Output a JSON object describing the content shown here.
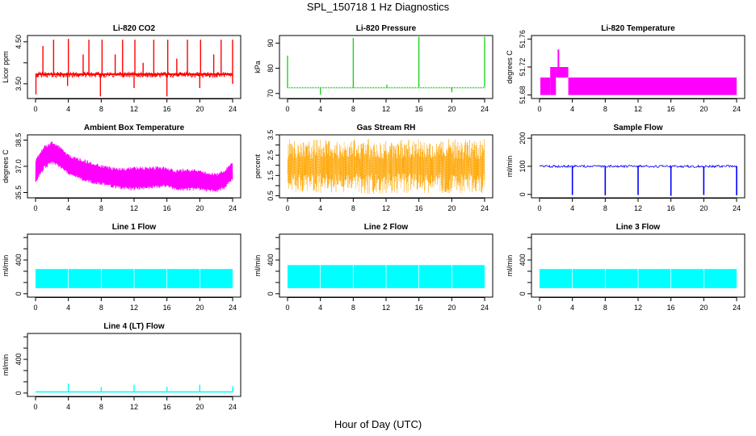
{
  "page": {
    "title": "SPL_150718  1 Hz Diagnostics",
    "xlabel": "Hour of Day (UTC)"
  },
  "chart_data": [
    {
      "id": "co2",
      "type": "line",
      "title": "Li-820 CO2",
      "ylabel": "Licor ppm",
      "color": "#ff0000",
      "x_ticks": [
        0,
        4,
        8,
        12,
        16,
        20,
        24
      ],
      "xlim": [
        0,
        24
      ],
      "y_ticks": [
        3.5,
        4,
        4.5
      ],
      "y_tick_labels": [
        "3.50",
        "",
        "4.50"
      ],
      "ylim": [
        3.15,
        4.65
      ],
      "baseline": 3.73,
      "band": [
        3.65,
        3.78
      ],
      "spikes_up": [
        [
          0.9,
          4.4
        ],
        [
          2.2,
          4.55
        ],
        [
          4.0,
          4.57
        ],
        [
          5.8,
          4.2
        ],
        [
          6.5,
          4.55
        ],
        [
          8.1,
          4.55
        ],
        [
          9.7,
          4.2
        ],
        [
          10.6,
          4.55
        ],
        [
          12.1,
          4.55
        ],
        [
          13.1,
          4.0
        ],
        [
          14.4,
          4.55
        ],
        [
          16.1,
          4.55
        ],
        [
          17.2,
          4.1
        ],
        [
          18.5,
          4.55
        ],
        [
          20.1,
          4.55
        ],
        [
          21.7,
          4.2
        ],
        [
          22.6,
          4.55
        ],
        [
          24.0,
          4.55
        ]
      ],
      "spikes_down": [
        [
          0.05,
          3.25
        ],
        [
          3.9,
          3.45
        ],
        [
          7.9,
          3.2
        ],
        [
          12.0,
          3.4
        ],
        [
          16.0,
          3.2
        ],
        [
          20.0,
          3.4
        ],
        [
          24.0,
          3.5
        ]
      ]
    },
    {
      "id": "pressure",
      "type": "line",
      "title": "Li-820 Pressure",
      "ylabel": "kPa",
      "color": "#00cc00",
      "x_ticks": [
        0,
        4,
        8,
        12,
        16,
        20,
        24
      ],
      "xlim": [
        0,
        24
      ],
      "y_ticks": [
        70,
        80,
        90
      ],
      "y_tick_labels": [
        "70",
        "80",
        "90"
      ],
      "ylim": [
        68,
        93
      ],
      "baseline": 72.3,
      "spikes_up": [
        [
          0.0,
          85
        ],
        [
          8.0,
          92
        ],
        [
          12.1,
          73.5
        ],
        [
          16.0,
          92.5
        ],
        [
          24.0,
          92.5
        ]
      ],
      "spikes_down": [
        [
          4.0,
          69.5
        ],
        [
          20.0,
          70.5
        ]
      ]
    },
    {
      "id": "licor-temp",
      "type": "area",
      "title": "Li-820 Temperature",
      "ylabel": "degrees C",
      "color": "#ff00ff",
      "x_ticks": [
        0,
        4,
        8,
        12,
        16,
        20,
        24
      ],
      "xlim": [
        0,
        24
      ],
      "y_ticks": [
        51.68,
        51.72,
        51.76
      ],
      "y_tick_labels": [
        "51.68",
        "51.72",
        "51.76"
      ],
      "ylim": [
        51.675,
        51.765
      ],
      "blocks": [
        [
          0.1,
          1.3,
          51.68,
          51.705
        ],
        [
          1.3,
          2.0,
          51.68,
          51.72
        ],
        [
          2.0,
          3.5,
          51.705,
          51.72
        ],
        [
          2.2,
          2.4,
          51.72,
          51.745
        ],
        [
          3.5,
          24.0,
          51.68,
          51.705
        ]
      ]
    },
    {
      "id": "box-temp",
      "type": "line",
      "title": "Ambient Box Temperature",
      "ylabel": "degrees C",
      "color": "#ff00ff",
      "x_ticks": [
        0,
        4,
        8,
        12,
        16,
        20,
        24
      ],
      "xlim": [
        0,
        24
      ],
      "y_ticks": [
        35.5,
        37.0,
        38.5
      ],
      "y_tick_labels": [
        "35.5",
        "37.0",
        "38.5"
      ],
      "ylim": [
        35.2,
        38.8
      ],
      "upper": [
        [
          0,
          37.5
        ],
        [
          1,
          38.2
        ],
        [
          2,
          38.45
        ],
        [
          3,
          38.2
        ],
        [
          4,
          37.7
        ],
        [
          6,
          37.4
        ],
        [
          8,
          37.1
        ],
        [
          10,
          36.9
        ],
        [
          12,
          37.0
        ],
        [
          14,
          37.0
        ],
        [
          16,
          37.0
        ],
        [
          17,
          36.8
        ],
        [
          18,
          36.9
        ],
        [
          20,
          36.8
        ],
        [
          22,
          36.6
        ],
        [
          23,
          36.8
        ],
        [
          24,
          37.3
        ]
      ],
      "lower": [
        [
          0,
          36.0
        ],
        [
          1,
          36.8
        ],
        [
          2,
          37.1
        ],
        [
          3,
          36.9
        ],
        [
          4,
          36.5
        ],
        [
          6,
          36.1
        ],
        [
          8,
          35.9
        ],
        [
          10,
          35.7
        ],
        [
          12,
          35.6
        ],
        [
          14,
          35.7
        ],
        [
          16,
          35.8
        ],
        [
          17,
          35.6
        ],
        [
          18,
          35.6
        ],
        [
          20,
          35.6
        ],
        [
          22,
          35.5
        ],
        [
          23,
          35.7
        ],
        [
          24,
          36.2
        ]
      ]
    },
    {
      "id": "rh",
      "type": "line",
      "title": "Gas Stream RH",
      "ylabel": "percent",
      "color": "#ffa500",
      "x_ticks": [
        0,
        4,
        8,
        12,
        16,
        20,
        24
      ],
      "xlim": [
        0,
        24
      ],
      "y_ticks": [
        0.5,
        1.0,
        1.5,
        2.0,
        2.5,
        3.0,
        3.5
      ],
      "y_tick_labels": [
        "0.5",
        "1.5",
        "2.5",
        "3.5"
      ],
      "ylim": [
        0.4,
        3.5
      ],
      "range": [
        0.6,
        3.3
      ]
    },
    {
      "id": "sample-flow",
      "type": "line",
      "title": "Sample Flow",
      "ylabel": "ml/min",
      "color": "#0000ff",
      "x_ticks": [
        0,
        4,
        8,
        12,
        16,
        20,
        24
      ],
      "xlim": [
        0,
        24
      ],
      "y_ticks": [
        0,
        100,
        200
      ],
      "y_tick_labels": [
        "0",
        "100",
        "200"
      ],
      "ylim": [
        -12,
        212
      ],
      "baseline": 100,
      "dips": [
        [
          4.0,
          -2
        ],
        [
          8.0,
          -3
        ],
        [
          12.0,
          -2
        ],
        [
          16.0,
          -5
        ],
        [
          20.0,
          -2
        ],
        [
          24.0,
          -3
        ]
      ]
    },
    {
      "id": "line1",
      "type": "line",
      "title": "Line 1 Flow",
      "ylabel": "ml/min",
      "color": "#00ffff",
      "x_ticks": [
        0,
        4,
        8,
        12,
        16,
        20,
        24
      ],
      "xlim": [
        0,
        24
      ],
      "y_ticks": [
        0,
        200,
        400,
        600,
        800,
        1000
      ],
      "y_tick_labels": [
        "0",
        "400",
        "800"
      ],
      "ylim": [
        -60,
        1060
      ],
      "band": [
        100,
        440
      ]
    },
    {
      "id": "line2",
      "type": "line",
      "title": "Line 2 Flow",
      "ylabel": "ml/min",
      "color": "#00ffff",
      "x_ticks": [
        0,
        4,
        8,
        12,
        16,
        20,
        24
      ],
      "xlim": [
        0,
        24
      ],
      "y_ticks": [
        0,
        200,
        400,
        600,
        800,
        1000
      ],
      "y_tick_labels": [
        "0",
        "400",
        "800"
      ],
      "ylim": [
        -60,
        1060
      ],
      "band": [
        100,
        510
      ]
    },
    {
      "id": "line3",
      "type": "line",
      "title": "Line 3 Flow",
      "ylabel": "ml/min",
      "color": "#00ffff",
      "x_ticks": [
        0,
        4,
        8,
        12,
        16,
        20,
        24
      ],
      "xlim": [
        0,
        24
      ],
      "y_ticks": [
        0,
        200,
        400,
        600,
        800,
        1000
      ],
      "y_tick_labels": [
        "0",
        "400",
        "800"
      ],
      "ylim": [
        -60,
        1060
      ],
      "band": [
        100,
        440
      ]
    },
    {
      "id": "line4",
      "type": "line",
      "title": "Line 4 (LT) Flow",
      "ylabel": "ml/min",
      "color": "#00ffff",
      "x_ticks": [
        0,
        4,
        8,
        12,
        16,
        20,
        24
      ],
      "xlim": [
        0,
        24
      ],
      "y_ticks": [
        0,
        200,
        400,
        600,
        800,
        1000
      ],
      "y_tick_labels": [
        "0",
        "400",
        "800"
      ],
      "ylim": [
        -60,
        1060
      ],
      "baseline": 20,
      "spikes_up": [
        [
          4.0,
          170
        ],
        [
          8.0,
          110
        ],
        [
          12.0,
          150
        ],
        [
          16.0,
          110
        ],
        [
          20.0,
          150
        ],
        [
          24.0,
          120
        ]
      ]
    }
  ]
}
